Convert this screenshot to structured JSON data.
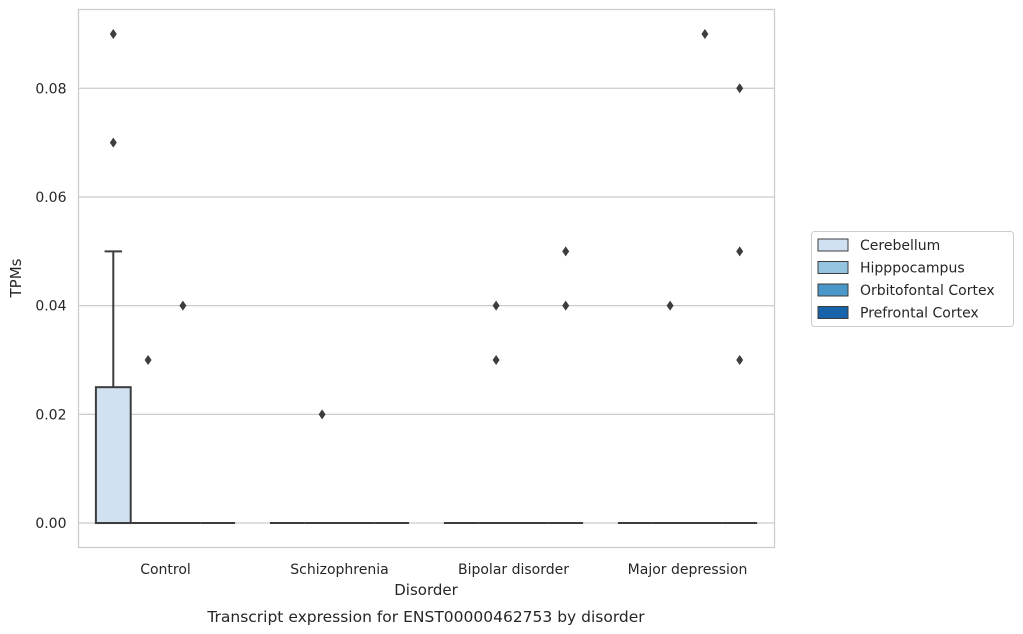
{
  "chart_data": {
    "type": "box",
    "title": "",
    "caption": "Transcript expression for ENST00000462753 by disorder",
    "xlabel": "Disorder",
    "ylabel": "TPMs",
    "categories": [
      "Control",
      "Schizophrenia",
      "Bipolar disorder",
      "Major depression"
    ],
    "ylim": [
      -0.0045,
      0.0945
    ],
    "yticks": [
      "0.00",
      "0.02",
      "0.04",
      "0.06",
      "0.08"
    ],
    "grid": "horizontal",
    "legend_position": "right",
    "series": [
      {
        "name": "Cerebellum",
        "color": "#d0e1f2",
        "boxes": [
          {
            "q1": 0.0,
            "median": 0.0,
            "q3": 0.025,
            "whislo": 0.0,
            "whishi": 0.05,
            "fliers": [
              0.07,
              0.09
            ]
          },
          {
            "q1": 0.0,
            "median": 0.0,
            "q3": 0.0,
            "whislo": 0.0,
            "whishi": 0.0,
            "fliers": []
          },
          {
            "q1": 0.0,
            "median": 0.0,
            "q3": 0.0,
            "whislo": 0.0,
            "whishi": 0.0,
            "fliers": []
          },
          {
            "q1": 0.0,
            "median": 0.0,
            "q3": 0.0,
            "whislo": 0.0,
            "whishi": 0.0,
            "fliers": []
          }
        ]
      },
      {
        "name": "Hipppocampus",
        "color": "#94c4df",
        "boxes": [
          {
            "q1": 0.0,
            "median": 0.0,
            "q3": 0.0,
            "whislo": 0.0,
            "whishi": 0.0,
            "fliers": [
              0.03
            ]
          },
          {
            "q1": 0.0,
            "median": 0.0,
            "q3": 0.0,
            "whislo": 0.0,
            "whishi": 0.0,
            "fliers": [
              0.02
            ]
          },
          {
            "q1": 0.0,
            "median": 0.0,
            "q3": 0.0,
            "whislo": 0.0,
            "whishi": 0.0,
            "fliers": [
              0.03,
              0.04
            ]
          },
          {
            "q1": 0.0,
            "median": 0.0,
            "q3": 0.0,
            "whislo": 0.0,
            "whishi": 0.0,
            "fliers": [
              0.04
            ]
          }
        ]
      },
      {
        "name": "Orbitofontal Cortex",
        "color": "#4a98c9",
        "boxes": [
          {
            "q1": 0.0,
            "median": 0.0,
            "q3": 0.0,
            "whislo": 0.0,
            "whishi": 0.0,
            "fliers": [
              0.04
            ]
          },
          {
            "q1": 0.0,
            "median": 0.0,
            "q3": 0.0,
            "whislo": 0.0,
            "whishi": 0.0,
            "fliers": []
          },
          {
            "q1": 0.0,
            "median": 0.0,
            "q3": 0.0,
            "whislo": 0.0,
            "whishi": 0.0,
            "fliers": []
          },
          {
            "q1": 0.0,
            "median": 0.0,
            "q3": 0.0,
            "whislo": 0.0,
            "whishi": 0.0,
            "fliers": [
              0.09
            ]
          }
        ]
      },
      {
        "name": "Prefrontal Cortex",
        "color": "#1764ab",
        "boxes": [
          {
            "q1": 0.0,
            "median": 0.0,
            "q3": 0.0,
            "whislo": 0.0,
            "whishi": 0.0,
            "fliers": []
          },
          {
            "q1": 0.0,
            "median": 0.0,
            "q3": 0.0,
            "whislo": 0.0,
            "whishi": 0.0,
            "fliers": []
          },
          {
            "q1": 0.0,
            "median": 0.0,
            "q3": 0.0,
            "whislo": 0.0,
            "whishi": 0.0,
            "fliers": [
              0.04,
              0.05
            ]
          },
          {
            "q1": 0.0,
            "median": 0.0,
            "q3": 0.0,
            "whislo": 0.0,
            "whishi": 0.0,
            "fliers": [
              0.03,
              0.08,
              0.05
            ]
          }
        ]
      }
    ]
  }
}
